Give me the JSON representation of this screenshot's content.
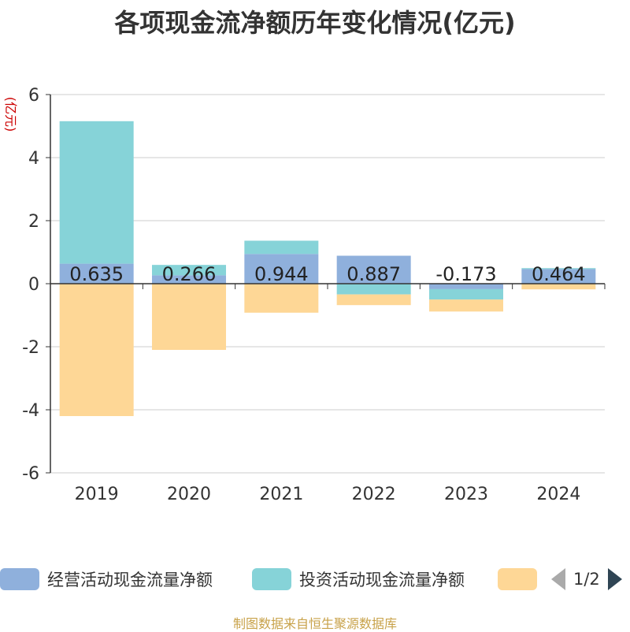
{
  "chart_data": {
    "type": "bar",
    "stacked": true,
    "title": "各项现金流净额历年变化情况(亿元)",
    "ylabel": "(亿元)",
    "xlabel": "",
    "ylim": [
      -6,
      6
    ],
    "yticks": [
      -6,
      -4,
      -2,
      0,
      2,
      4,
      6
    ],
    "categories": [
      "2019",
      "2020",
      "2021",
      "2022",
      "2023",
      "2024"
    ],
    "series": [
      {
        "name": "经营活动现金流量净额",
        "color": "#8fb0dc",
        "values": [
          0.635,
          0.266,
          0.944,
          0.887,
          -0.173,
          0.464
        ],
        "labels": [
          "0.635",
          "0.266",
          "0.944",
          "0.887",
          "-0.173",
          "0.464"
        ]
      },
      {
        "name": "投资活动现金流量净额",
        "color": "#86d3d8",
        "values": [
          4.52,
          0.33,
          0.42,
          -0.34,
          -0.33,
          0.03
        ]
      },
      {
        "name": "",
        "color": "#fed796",
        "values": [
          -4.2,
          -2.1,
          -0.92,
          -0.34,
          -0.38,
          -0.18
        ]
      }
    ],
    "legend_position": "bottom"
  },
  "legend": {
    "items": [
      {
        "label": "经营活动现金流量净额",
        "color": "#8fb0dc"
      },
      {
        "label": "投资活动现金流量净额",
        "color": "#86d3d8"
      },
      {
        "label": "",
        "color": "#fed796"
      }
    ],
    "page_indicator": "1/2"
  },
  "source_text": "制图数据来自恒生聚源数据库"
}
